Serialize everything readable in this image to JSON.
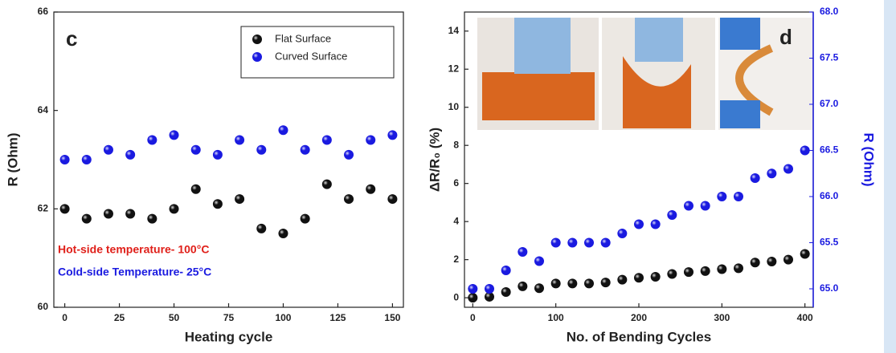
{
  "chart_data": [
    {
      "type": "scatter",
      "x_label": "Heating cycle",
      "y_label": "R (Ohm)",
      "x": [
        0,
        10,
        20,
        30,
        40,
        50,
        60,
        70,
        80,
        90,
        100,
        110,
        120,
        130,
        140,
        150
      ],
      "series": [
        {
          "name": "Flat Surface",
          "color": "#111111",
          "values": [
            62.0,
            61.8,
            61.9,
            61.9,
            61.8,
            62.0,
            62.4,
            62.1,
            62.2,
            61.6,
            61.5,
            61.8,
            62.5,
            62.2,
            62.4,
            62.2
          ]
        },
        {
          "name": "Curved Surface",
          "color": "#1a1ae0",
          "values": [
            63.0,
            63.0,
            63.2,
            63.1,
            63.4,
            63.5,
            63.2,
            63.1,
            63.4,
            63.2,
            63.6,
            63.2,
            63.4,
            63.1,
            63.4,
            63.5
          ]
        }
      ],
      "xlim": [
        -5,
        155
      ],
      "xticks": [
        0,
        25,
        50,
        75,
        100,
        125,
        150
      ],
      "ylim": [
        60,
        66
      ],
      "yticks": [
        60,
        62,
        64,
        66
      ],
      "legend": "top right",
      "grid": false,
      "annotations": [
        {
          "text": "c",
          "color": "#222222"
        },
        {
          "text": "Hot-side temperature- 100°C",
          "color": "#e0201a"
        },
        {
          "text": "Cold-side Temperature- 25°C",
          "color": "#1a1ae0"
        }
      ]
    },
    {
      "type": "scatter",
      "x_label": "No. of Bending Cycles",
      "y_label": "ΔR/R₀ (%)",
      "y2_label": "R (Ohm)",
      "x": [
        0,
        20,
        40,
        60,
        80,
        100,
        120,
        140,
        160,
        180,
        200,
        220,
        240,
        260,
        280,
        300,
        320,
        340,
        360,
        380,
        400
      ],
      "series": [
        {
          "color": "#111111",
          "values": [
            0,
            0.05,
            0.3,
            0.6,
            0.5,
            0.75,
            0.75,
            0.75,
            0.8,
            0.95,
            1.05,
            1.1,
            1.25,
            1.35,
            1.4,
            1.5,
            1.55,
            1.85,
            1.9,
            2.0,
            2.3
          ]
        },
        {
          "color": "#1a1ae0",
          "axis": "y2",
          "values": [
            65.0,
            65.0,
            65.2,
            65.4,
            65.3,
            65.5,
            65.5,
            65.5,
            65.5,
            65.6,
            65.7,
            65.7,
            65.8,
            65.9,
            65.9,
            66.0,
            66.0,
            66.2,
            66.25,
            66.3,
            66.5
          ]
        }
      ],
      "xlim": [
        -10,
        410
      ],
      "xticks": [
        0,
        100,
        200,
        300,
        400
      ],
      "ylim": [
        -0.5,
        15
      ],
      "yticks": [
        0,
        2,
        4,
        6,
        8,
        10,
        12,
        14
      ],
      "y2lim": [
        64.8,
        68.0
      ],
      "y2ticks": [
        {
          "value": 65,
          "label": "65.0"
        },
        65.5,
        {
          "value": 66,
          "label": "66.0"
        },
        66.5,
        {
          "value": 67,
          "label": "67.0"
        },
        67.5,
        {
          "value": 68,
          "label": "68.0"
        }
      ],
      "y2color": "#1a1ae0",
      "grid": false,
      "annotations": [
        {
          "text": "d",
          "color": "#222222"
        }
      ]
    }
  ]
}
